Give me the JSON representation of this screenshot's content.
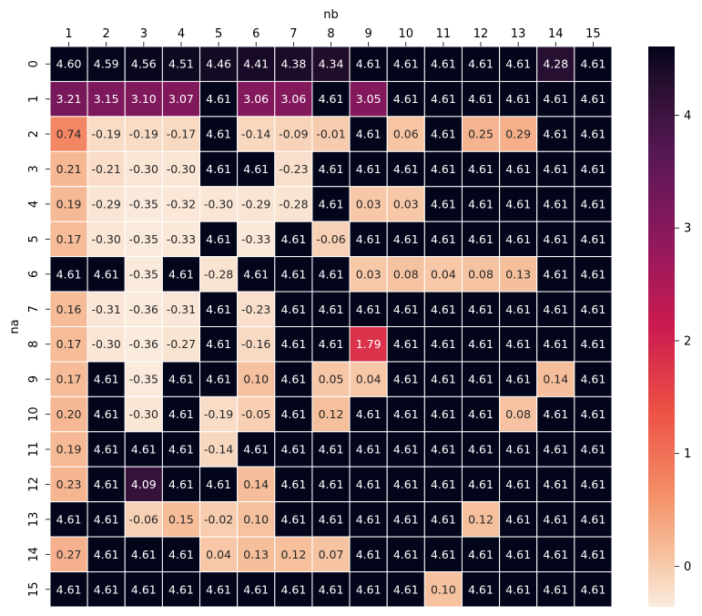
{
  "chart_data": {
    "type": "heatmap",
    "xlabel": "nb",
    "ylabel": "na",
    "x_tick_position": "top",
    "x": [
      1,
      2,
      3,
      4,
      5,
      6,
      7,
      8,
      9,
      10,
      11,
      12,
      13,
      14,
      15
    ],
    "y": [
      0,
      1,
      2,
      3,
      4,
      5,
      6,
      7,
      8,
      9,
      10,
      11,
      12,
      13,
      14,
      15
    ],
    "values": [
      [
        4.6,
        4.59,
        4.56,
        4.51,
        4.46,
        4.41,
        4.38,
        4.34,
        4.61,
        4.61,
        4.61,
        4.61,
        4.61,
        4.28,
        4.61
      ],
      [
        3.21,
        3.15,
        3.1,
        3.07,
        4.61,
        3.06,
        3.06,
        4.61,
        3.05,
        4.61,
        4.61,
        4.61,
        4.61,
        4.61,
        4.61
      ],
      [
        0.74,
        -0.19,
        -0.19,
        -0.17,
        4.61,
        -0.14,
        -0.09,
        -0.01,
        4.61,
        0.06,
        4.61,
        0.25,
        0.29,
        4.61,
        4.61
      ],
      [
        0.21,
        -0.21,
        -0.3,
        -0.3,
        4.61,
        4.61,
        -0.23,
        4.61,
        4.61,
        4.61,
        4.61,
        4.61,
        4.61,
        4.61,
        4.61
      ],
      [
        0.19,
        -0.29,
        -0.35,
        -0.32,
        -0.3,
        -0.29,
        -0.28,
        4.61,
        0.03,
        0.03,
        4.61,
        4.61,
        4.61,
        4.61,
        4.61
      ],
      [
        0.17,
        -0.3,
        -0.35,
        -0.33,
        4.61,
        -0.33,
        4.61,
        -0.06,
        4.61,
        4.61,
        4.61,
        4.61,
        4.61,
        4.61,
        4.61
      ],
      [
        4.61,
        4.61,
        -0.35,
        4.61,
        -0.28,
        4.61,
        4.61,
        4.61,
        0.03,
        0.08,
        0.04,
        0.08,
        0.13,
        4.61,
        4.61
      ],
      [
        0.16,
        -0.31,
        -0.36,
        -0.31,
        4.61,
        -0.23,
        4.61,
        4.61,
        4.61,
        4.61,
        4.61,
        4.61,
        4.61,
        4.61,
        4.61
      ],
      [
        0.17,
        -0.3,
        -0.36,
        -0.27,
        4.61,
        -0.16,
        4.61,
        4.61,
        1.79,
        4.61,
        4.61,
        4.61,
        4.61,
        4.61,
        4.61
      ],
      [
        0.17,
        4.61,
        -0.35,
        4.61,
        4.61,
        0.1,
        4.61,
        0.05,
        0.04,
        4.61,
        4.61,
        4.61,
        4.61,
        0.14,
        4.61
      ],
      [
        0.2,
        4.61,
        -0.3,
        4.61,
        -0.19,
        -0.05,
        4.61,
        0.12,
        4.61,
        4.61,
        4.61,
        4.61,
        0.08,
        4.61,
        4.61
      ],
      [
        0.19,
        4.61,
        4.61,
        4.61,
        -0.14,
        4.61,
        4.61,
        4.61,
        4.61,
        4.61,
        4.61,
        4.61,
        4.61,
        4.61,
        4.61
      ],
      [
        0.23,
        4.61,
        4.09,
        4.61,
        4.61,
        0.14,
        4.61,
        4.61,
        4.61,
        4.61,
        4.61,
        4.61,
        4.61,
        4.61,
        4.61
      ],
      [
        4.61,
        4.61,
        -0.06,
        0.15,
        -0.02,
        0.1,
        4.61,
        4.61,
        4.61,
        4.61,
        4.61,
        0.12,
        4.61,
        4.61,
        4.61
      ],
      [
        0.27,
        4.61,
        4.61,
        4.61,
        0.04,
        0.13,
        0.12,
        0.07,
        4.61,
        4.61,
        4.61,
        4.61,
        4.61,
        4.61,
        4.61
      ],
      [
        4.61,
        4.61,
        4.61,
        4.61,
        4.61,
        4.61,
        4.61,
        4.61,
        4.61,
        4.61,
        0.1,
        4.61,
        4.61,
        4.61,
        4.61
      ]
    ],
    "colorbar": {
      "min": -0.36,
      "max": 4.61,
      "ticks": [
        0,
        1,
        2,
        3,
        4
      ],
      "colormap": "rocket_r"
    }
  }
}
